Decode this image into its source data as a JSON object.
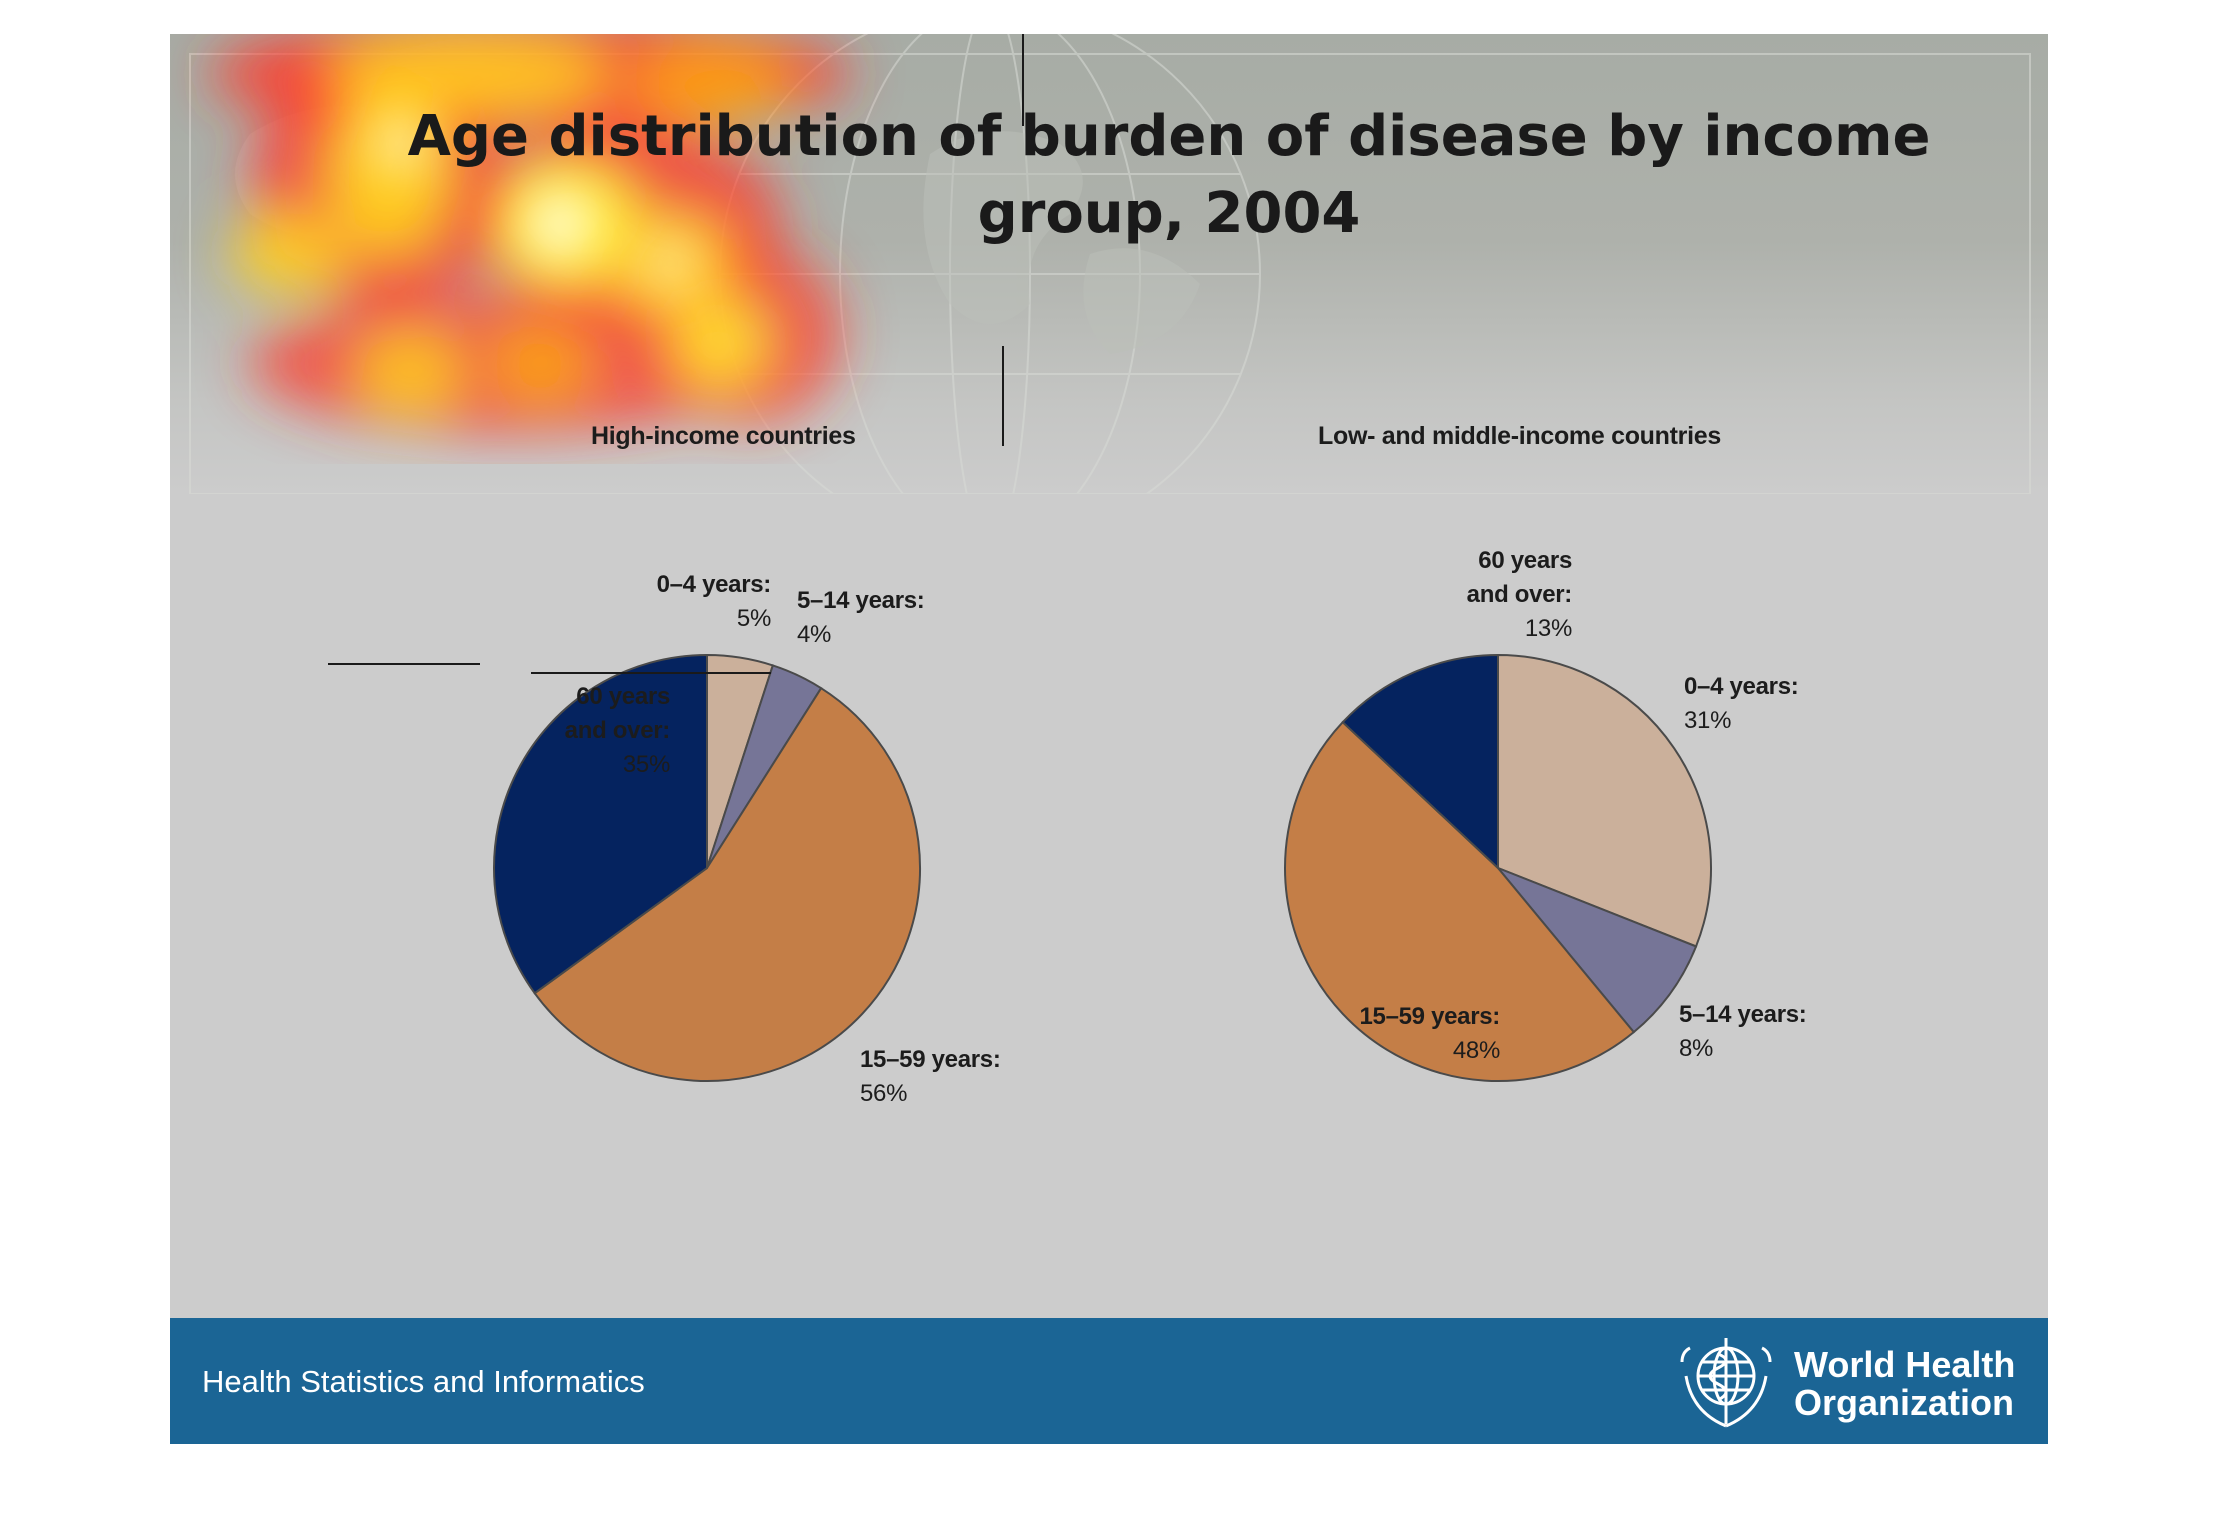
{
  "title_line_1": "Age distribution of burden of disease by income",
  "title_line_2": "group, 2004",
  "footer": {
    "text": "Health Statistics and Informatics",
    "org_line_1": "World Health",
    "org_line_2": "Organization",
    "emblem_icon": "who-emblem-icon"
  },
  "colors": {
    "age_0_4": "#cbb09b",
    "age_5_14": "#767597",
    "age_15_59": "#c47e47",
    "age_60_plus": "#05235f",
    "footer_band": "#1b6595"
  },
  "chart_data": [
    {
      "type": "pie",
      "title": "High-income countries",
      "slices": [
        {
          "name": "0–4 years:",
          "value": 5,
          "label": "5%"
        },
        {
          "name": "5–14 years:",
          "value": 4,
          "label": "4%"
        },
        {
          "name": "15–59 years:",
          "value": 56,
          "label": "56%"
        },
        {
          "name": "60 years and over:",
          "value": 35,
          "label": "35%"
        }
      ],
      "start": "12 o'clock",
      "direction": "clockwise"
    },
    {
      "type": "pie",
      "title": "Low- and middle-income countries",
      "slices": [
        {
          "name": "0–4 years:",
          "value": 31,
          "label": "31%"
        },
        {
          "name": "5–14 years:",
          "value": 8,
          "label": "8%"
        },
        {
          "name": "15–59 years:",
          "value": 48,
          "label": "48%"
        },
        {
          "name": "60 years and over:",
          "value": 13,
          "label": "13%"
        }
      ],
      "start": "12 o'clock",
      "direction": "clockwise"
    }
  ],
  "label_text": {
    "c0": {
      "s0": {
        "name": "0–4 years:"
      },
      "s1": {
        "name": "5–14 years:"
      },
      "s2": {
        "name": "15–59 years:"
      },
      "s3": {
        "name_1": "60 years",
        "name_2": "and over:"
      }
    },
    "c1": {
      "s0": {
        "name": "0–4 years:"
      },
      "s1": {
        "name": "5–14 years:"
      },
      "s2": {
        "name": "15–59 years:"
      },
      "s3": {
        "name_1": "60 years",
        "name_2": "and over:"
      }
    }
  }
}
